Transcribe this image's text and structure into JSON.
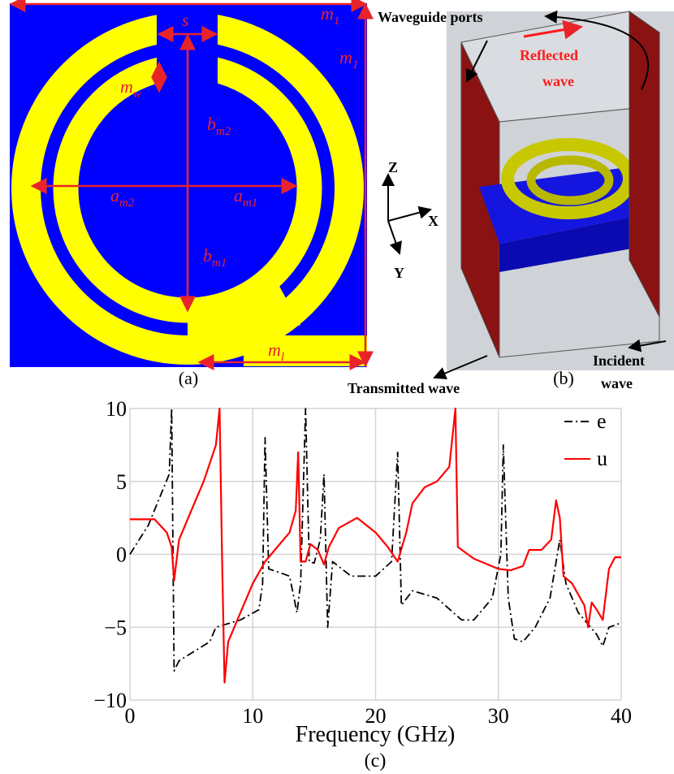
{
  "panel_a": {
    "labels": [
      {
        "base": "m",
        "sub": "1"
      },
      {
        "base": "m",
        "sub": "1"
      },
      {
        "base": "s"
      },
      {
        "base": "m",
        "sub": "w"
      },
      {
        "base": "b",
        "sub": "m2"
      },
      {
        "base": "a",
        "sub": "m2"
      },
      {
        "base": "a",
        "sub": "m1"
      },
      {
        "base": "b",
        "sub": "m1"
      },
      {
        "base": "m",
        "sub": "l"
      }
    ],
    "caption": "(a)"
  },
  "panel_b": {
    "waveguide_ports": "Waveguide ports",
    "reflected_wave": [
      "Reflected",
      "wave"
    ],
    "axes": [
      "Z",
      "X",
      "Y"
    ],
    "transmitted_wave": "Transmitted wave",
    "incident_wave": [
      "Incident",
      "wave"
    ],
    "caption": "(b)"
  },
  "chart_data": {
    "type": "line",
    "xlabel": "Frequency (GHz)",
    "caption": "(c)",
    "xlim": [
      0,
      40
    ],
    "ylim": [
      -10,
      10
    ],
    "xticks": [
      0,
      10,
      20,
      30,
      40
    ],
    "yticks": [
      {
        "value": -10,
        "label": "−10"
      },
      {
        "value": -5,
        "label": "−5"
      },
      0,
      5,
      10
    ],
    "grid": true,
    "legend": "top-right",
    "series": [
      {
        "name": "e",
        "color": "#000000",
        "x": [
          0,
          1.5,
          3.2,
          3.4,
          3.6,
          4,
          6.5,
          7,
          9,
          10.5,
          10.8,
          11,
          11.3,
          12,
          13,
          13.6,
          13.9,
          14.3,
          14.6,
          15,
          15.5,
          15.8,
          16.1,
          16.5,
          18,
          20,
          21.3,
          21.8,
          22.1,
          23,
          25,
          27,
          28,
          29.5,
          30.2,
          30.4,
          30.8,
          31.3,
          32,
          33,
          34.2,
          35,
          35.5,
          36.5,
          38,
          38.5,
          39,
          40
        ],
        "values": [
          0,
          2,
          5.5,
          10,
          -8,
          -7.3,
          -6,
          -5,
          -4.5,
          -3.8,
          -2,
          8,
          -1,
          -1.2,
          -1.5,
          -4,
          -2,
          10,
          -0.5,
          -0.6,
          1,
          5.5,
          -5,
          -0.5,
          -1.5,
          -1.5,
          -0.5,
          7,
          -3.5,
          -2.5,
          -3,
          -4.5,
          -4.5,
          -3,
          0,
          7.5,
          -3,
          -5.8,
          -6,
          -5,
          -3,
          1,
          -2,
          -4,
          -5.5,
          -6.3,
          -5,
          -4.7
        ]
      },
      {
        "name": "u",
        "color": "#ff0000",
        "x": [
          0,
          2,
          3,
          3.4,
          3.6,
          4,
          5,
          6,
          7,
          7.3,
          7.5,
          7.7,
          8,
          9,
          10,
          11,
          12,
          13,
          13.5,
          13.7,
          13.9,
          14.3,
          14.7,
          15.3,
          15.8,
          16.2,
          17,
          18.5,
          20,
          21,
          21.8,
          22.5,
          23,
          24,
          25,
          26,
          26.5,
          26.7,
          28,
          30,
          31,
          32,
          32.5,
          33.5,
          34.3,
          34.7,
          35,
          35.3,
          36,
          37,
          37.3,
          37.6,
          38,
          38.5,
          39,
          39.5,
          40
        ],
        "values": [
          2.4,
          2.4,
          1.5,
          0.5,
          -1.8,
          1,
          3,
          5,
          7.5,
          10,
          0,
          -8.8,
          -6,
          -4,
          -2,
          -0.5,
          0.5,
          1.5,
          3,
          7,
          -0.5,
          -0.5,
          0.7,
          0.3,
          -0.7,
          0.5,
          1.8,
          2.5,
          1.5,
          0.5,
          -0.5,
          1.5,
          3.5,
          4.6,
          5,
          6,
          10,
          0.5,
          -0.3,
          -1,
          -1.1,
          -0.8,
          0.3,
          0.3,
          1,
          3.7,
          2.5,
          -1.5,
          -2,
          -3.5,
          -5,
          -3.3,
          -3.8,
          -4.5,
          -1,
          -0.2,
          -0.2
        ]
      }
    ]
  }
}
